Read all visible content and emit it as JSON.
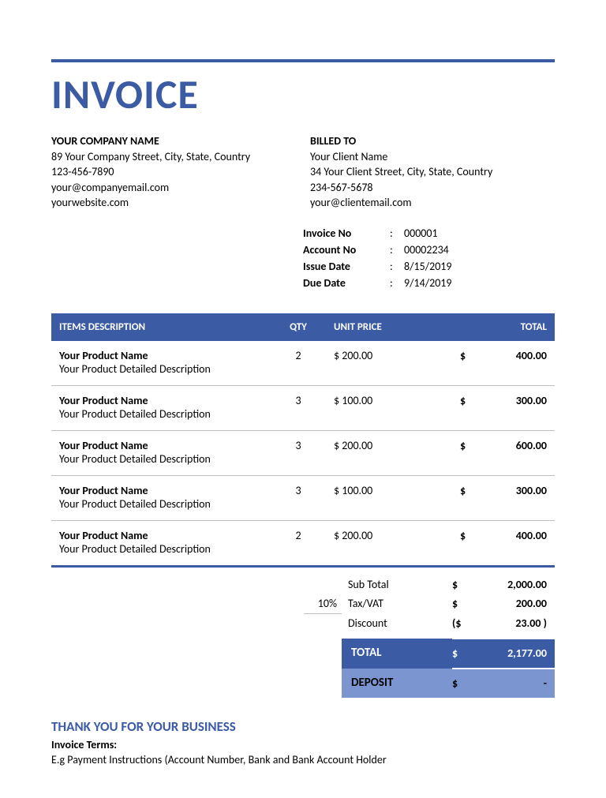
{
  "colors": {
    "accent": "#3b5ba5",
    "accent_light": "#7a95cf",
    "rule": "#3b5ba5",
    "row_border": "#bfbfbf",
    "table_header_bg": "#3b5ba5",
    "white": "#ffffff",
    "black": "#000000"
  },
  "title": "INVOICE",
  "company": {
    "label": "YOUR COMPANY NAME",
    "address": "89 Your Company Street, City, State, Country",
    "phone": "123-456-7890",
    "email": "your@companyemail.com",
    "website": "yourwebsite.com"
  },
  "client": {
    "label": "BILLED TO",
    "name": "Your Client Name",
    "address": "34 Your Client Street, City, State, Country",
    "phone": "234-567-5678",
    "email": "your@clientemail.com"
  },
  "meta": {
    "invoice_no_label": "Invoice No",
    "invoice_no": "000001",
    "account_no_label": "Account No",
    "account_no": "00002234",
    "issue_date_label": "Issue Date",
    "issue_date": "8/15/2019",
    "due_date_label": "Due Date",
    "due_date": "9/14/2019",
    "sep": ":"
  },
  "table": {
    "headers": {
      "desc": "ITEMS DESCRIPTION",
      "qty": "QTY",
      "unit": "UNIT PRICE",
      "total": "TOTAL"
    },
    "currency": "$",
    "rows": [
      {
        "name": "Your Product Name",
        "desc": "Your Product Detailed Description",
        "qty": "2",
        "unit": "$ 200.00",
        "total": "400.00"
      },
      {
        "name": "Your Product Name",
        "desc": "Your Product Detailed Description",
        "qty": "3",
        "unit": "$ 100.00",
        "total": "300.00"
      },
      {
        "name": "Your Product Name",
        "desc": "Your Product Detailed Description",
        "qty": "3",
        "unit": "$ 200.00",
        "total": "600.00"
      },
      {
        "name": "Your Product Name",
        "desc": "Your Product Detailed Description",
        "qty": "3",
        "unit": "$ 100.00",
        "total": "300.00"
      },
      {
        "name": "Your Product Name",
        "desc": "Your Product Detailed Description",
        "qty": "2",
        "unit": "$ 200.00",
        "total": "400.00"
      }
    ]
  },
  "totals": {
    "subtotal_label": "Sub Total",
    "subtotal": "2,000.00",
    "tax_pct": "10%",
    "tax_label": "Tax/VAT",
    "tax": "200.00",
    "discount_label": "Discount",
    "discount_sym": "($",
    "discount": "23.00 )",
    "total_label": "TOTAL",
    "total": "2,177.00",
    "deposit_label": "DEPOSIT",
    "deposit": "-",
    "sym": "$"
  },
  "footer": {
    "thanks": "THANK YOU FOR YOUR BUSINESS",
    "terms_label": "Invoice Terms:",
    "terms_text": "E.g Payment Instructions (Account Number, Bank and Bank Account Holder"
  }
}
